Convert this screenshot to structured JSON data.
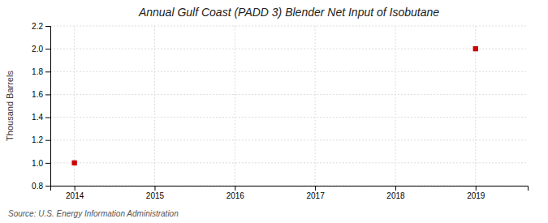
{
  "chart_data": {
    "type": "scatter",
    "title": "Annual Gulf Coast (PADD 3) Blender Net Input of Isobutane",
    "ylabel": "Thousand Barrels",
    "source": "Source: U.S. Energy Information Administration",
    "x": [
      2014,
      2019
    ],
    "values": [
      1.0,
      2.0
    ],
    "color": "#cc0000",
    "marker": "square",
    "xlim": [
      2013.7,
      2019.65
    ],
    "ylim": [
      0.8,
      2.2
    ],
    "xticks": [
      2014,
      2015,
      2016,
      2017,
      2018,
      2019
    ],
    "yticks": [
      0.8,
      {
        "value": 1.0,
        "label": "1.0"
      },
      1.2,
      1.4,
      1.6,
      1.8,
      {
        "value": 2.0,
        "label": "2.0"
      },
      2.2
    ],
    "grid": true
  }
}
